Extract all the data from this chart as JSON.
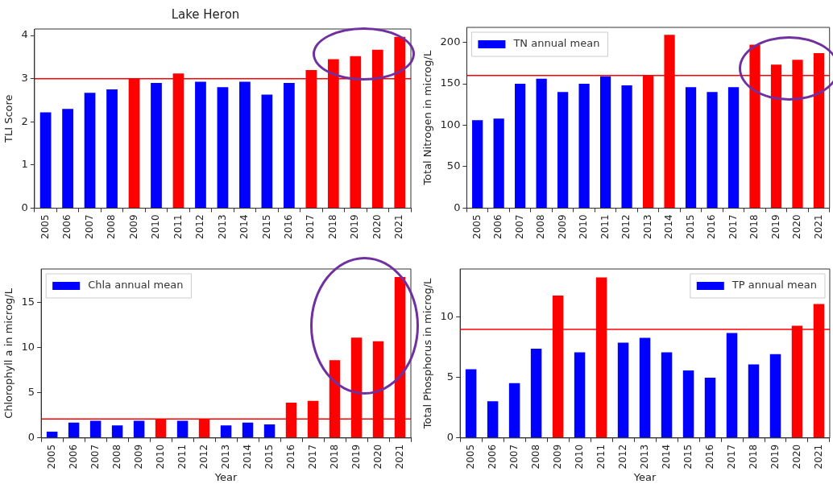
{
  "chart_data": [
    {
      "type": "bar",
      "title": "Lake Heron",
      "ylabel": "TLI Score",
      "categories": [
        "2005",
        "2006",
        "2007",
        "2008",
        "2009",
        "2010",
        "2011",
        "2012",
        "2013",
        "2014",
        "2015",
        "2016",
        "2017",
        "2018",
        "2019",
        "2020",
        "2021"
      ],
      "series": [
        {
          "values": [
            2.22,
            2.3,
            2.67,
            2.75,
            3.0,
            2.9,
            3.12,
            2.93,
            2.8,
            2.93,
            2.63,
            2.9,
            3.2,
            3.45,
            3.52,
            3.67,
            3.97
          ],
          "colors": [
            "#0000ff",
            "#0000ff",
            "#0000ff",
            "#0000ff",
            "#ff0000",
            "#0000ff",
            "#ff0000",
            "#0000ff",
            "#0000ff",
            "#0000ff",
            "#0000ff",
            "#0000ff",
            "#ff0000",
            "#ff0000",
            "#ff0000",
            "#ff0000",
            "#ff0000"
          ]
        }
      ],
      "ylim": [
        0,
        4.15
      ],
      "yticks": [
        0,
        1,
        2,
        3,
        4
      ],
      "grid": false,
      "legend": false,
      "ref_lines": [
        {
          "axis": "y",
          "value": 3,
          "color": "#ff0000"
        }
      ]
    },
    {
      "type": "bar",
      "ylabel": "Total Nitrogen in microg/L",
      "categories": [
        "2005",
        "2006",
        "2007",
        "2008",
        "2009",
        "2010",
        "2011",
        "2012",
        "2013",
        "2014",
        "2015",
        "2016",
        "2017",
        "2018",
        "2019",
        "2020",
        "2021"
      ],
      "series": [
        {
          "name": "TN annual mean",
          "color": "#0000ff",
          "values": [
            106,
            108,
            150,
            156,
            140,
            150,
            159,
            148,
            160,
            209,
            146,
            140,
            146,
            197,
            173,
            179,
            187
          ],
          "colors": [
            "#0000ff",
            "#0000ff",
            "#0000ff",
            "#0000ff",
            "#0000ff",
            "#0000ff",
            "#0000ff",
            "#0000ff",
            "#ff0000",
            "#ff0000",
            "#0000ff",
            "#0000ff",
            "#0000ff",
            "#ff0000",
            "#ff0000",
            "#ff0000",
            "#ff0000"
          ]
        }
      ],
      "ylim": [
        0,
        218
      ],
      "yticks": [
        0,
        50,
        100,
        150,
        200
      ],
      "grid": false,
      "legend": "top left",
      "ref_lines": [
        {
          "axis": "y",
          "value": 160,
          "color": "#ff0000"
        }
      ]
    },
    {
      "type": "bar",
      "xlabel": "Year",
      "ylabel": "Chlorophyll a in microg/L",
      "categories": [
        "2005",
        "2006",
        "2007",
        "2008",
        "2009",
        "2010",
        "2011",
        "2012",
        "2013",
        "2014",
        "2015",
        "2016",
        "2017",
        "2018",
        "2019",
        "2020",
        "2021"
      ],
      "series": [
        {
          "name": "Chla annual mean",
          "color": "#0000ff",
          "values": [
            0.7,
            1.7,
            1.9,
            1.4,
            1.9,
            2.1,
            1.9,
            2.1,
            1.4,
            1.7,
            1.5,
            3.9,
            4.1,
            8.6,
            11.1,
            10.7,
            17.8
          ],
          "colors": [
            "#0000ff",
            "#0000ff",
            "#0000ff",
            "#0000ff",
            "#0000ff",
            "#ff0000",
            "#0000ff",
            "#ff0000",
            "#0000ff",
            "#0000ff",
            "#0000ff",
            "#ff0000",
            "#ff0000",
            "#ff0000",
            "#ff0000",
            "#ff0000",
            "#ff0000"
          ]
        }
      ],
      "ylim": [
        0,
        18.7
      ],
      "yticks": [
        0,
        5,
        10,
        15
      ],
      "grid": false,
      "legend": "top left",
      "ref_lines": [
        {
          "axis": "y",
          "value": 2.1,
          "color": "#ff0000"
        }
      ]
    },
    {
      "type": "bar",
      "xlabel": "Year",
      "ylabel": "Total Phosphorus in microg/L",
      "categories": [
        "2005",
        "2006",
        "2007",
        "2008",
        "2009",
        "2010",
        "2011",
        "2012",
        "2013",
        "2014",
        "2015",
        "2016",
        "2017",
        "2018",
        "2019",
        "2020",
        "2021"
      ],
      "series": [
        {
          "name": "TP annual mean",
          "color": "#0000ff",
          "values": [
            5.7,
            3.05,
            4.55,
            7.4,
            11.8,
            7.1,
            13.3,
            7.9,
            8.3,
            7.1,
            5.6,
            5.0,
            8.7,
            6.1,
            6.95,
            9.3,
            11.1
          ],
          "colors": [
            "#0000ff",
            "#0000ff",
            "#0000ff",
            "#0000ff",
            "#ff0000",
            "#0000ff",
            "#ff0000",
            "#0000ff",
            "#0000ff",
            "#0000ff",
            "#0000ff",
            "#0000ff",
            "#0000ff",
            "#0000ff",
            "#0000ff",
            "#ff0000",
            "#ff0000"
          ]
        }
      ],
      "ylim": [
        0,
        14
      ],
      "yticks": [
        0,
        5,
        10
      ],
      "grid": false,
      "legend": "top right",
      "ref_lines": [
        {
          "axis": "y",
          "value": 9,
          "color": "#ff0000"
        }
      ]
    }
  ]
}
